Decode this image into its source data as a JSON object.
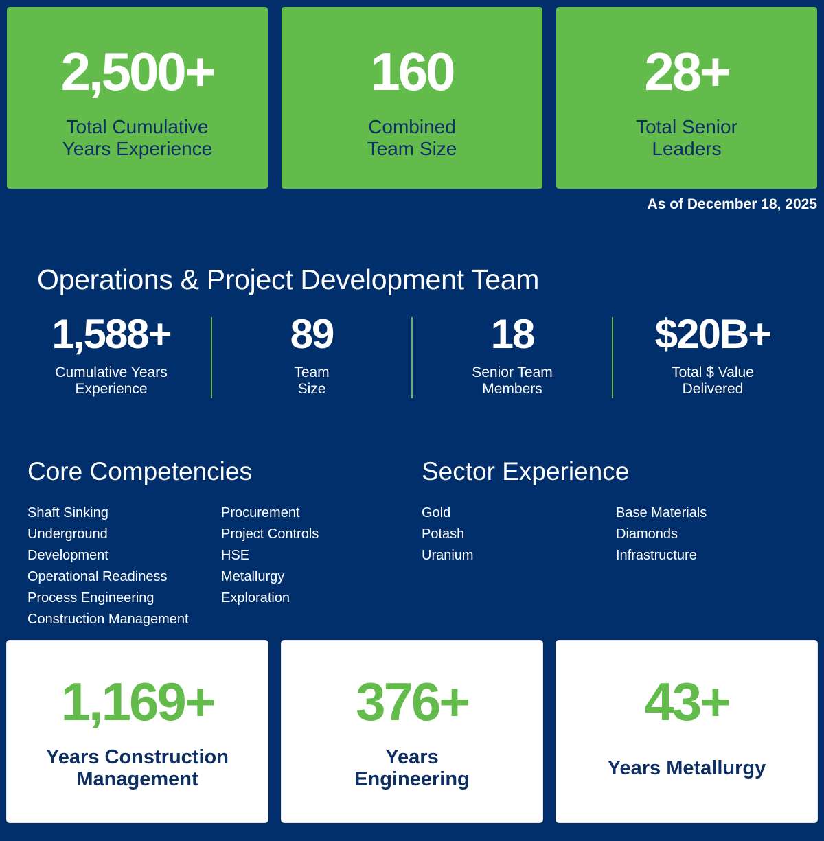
{
  "top_stats": [
    {
      "value": "2,500+",
      "label_line1": "Total Cumulative",
      "label_line2": "Years Experience"
    },
    {
      "value": "160",
      "label_line1": "Combined",
      "label_line2": "Team Size"
    },
    {
      "value": "28+",
      "label_line1": "Total Senior",
      "label_line2": "Leaders"
    }
  ],
  "as_of": "As of December 18, 2025",
  "ops": {
    "title": "Operations & Project Development Team",
    "stats": [
      {
        "value": "1,588+",
        "label_line1": "Cumulative Years",
        "label_line2": "Experience"
      },
      {
        "value": "89",
        "label_line1": "Team",
        "label_line2": "Size"
      },
      {
        "value": "18",
        "label_line1": "Senior Team",
        "label_line2": "Members"
      },
      {
        "value": "$20B+",
        "label_line1": "Total $ Value",
        "label_line2": "Delivered"
      }
    ]
  },
  "core_competencies": {
    "title": "Core Competencies",
    "col1": [
      "Shaft Sinking",
      "Underground",
      "Development",
      "Operational Readiness",
      "Process Engineering",
      "Construction Management"
    ],
    "col2": [
      "Procurement",
      "Project Controls",
      "HSE",
      "Metallurgy",
      "Exploration"
    ]
  },
  "sector_experience": {
    "title": "Sector Experience",
    "col1": [
      "Gold",
      "Potash",
      "Uranium"
    ],
    "col2": [
      "Base Materials",
      "Diamonds",
      "Infrastructure"
    ]
  },
  "bottom_stats": [
    {
      "value": "1,169+",
      "label_line1": "Years Construction",
      "label_line2": "Management"
    },
    {
      "value": "376+",
      "label_line1": "Years",
      "label_line2": "Engineering"
    },
    {
      "value": "43+",
      "label_line1": "Years Metallurgy",
      "label_line2": ""
    }
  ],
  "colors": {
    "background": "#002f6c",
    "accent_green": "#62bb4b",
    "label_navy": "#0d2f63"
  }
}
